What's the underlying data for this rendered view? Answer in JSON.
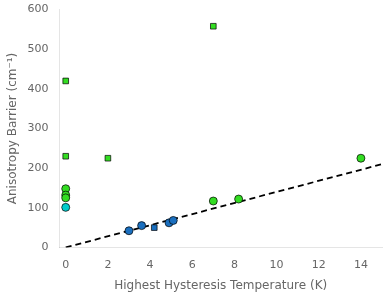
{
  "chart_data": {
    "type": "scatter",
    "xlabel": "Highest Hysteresis Temperature (K)",
    "ylabel": "Anisotropy Barrier (cm⁻¹)",
    "xlim": [
      -0.3,
      15
    ],
    "ylim": [
      0,
      600
    ],
    "xticks": [
      0,
      2,
      4,
      6,
      8,
      10,
      12,
      14
    ],
    "yticks": [
      0,
      100,
      200,
      300,
      400,
      500,
      600
    ],
    "grid": false,
    "series": [
      {
        "color": "#1A6FBF",
        "marker": "circle",
        "x": [
          3.0,
          3.6,
          4.9,
          5.1
        ],
        "values": [
          42,
          55,
          62,
          68
        ]
      },
      {
        "color": "#1A6FBF",
        "marker": "square",
        "x": [
          4.2
        ],
        "values": [
          50
        ]
      },
      {
        "color": "#33DD22",
        "marker": "circle",
        "x": [
          0.0,
          0.0,
          0.0,
          7.0,
          8.2,
          14.0
        ],
        "values": [
          148,
          132,
          125,
          117,
          122,
          225
        ]
      },
      {
        "color": "#33DD22",
        "marker": "square",
        "x": [
          0.0,
          0.0,
          2.0,
          7.0
        ],
        "values": [
          230,
          420,
          225,
          558
        ]
      },
      {
        "color": "#00CCCC",
        "marker": "circle",
        "x": [
          0.0
        ],
        "values": [
          101
        ]
      },
      {
        "type": "line",
        "color": "black",
        "line_style": "dashed",
        "x": [
          0,
          15
        ],
        "values": [
          0,
          210
        ]
      }
    ]
  }
}
